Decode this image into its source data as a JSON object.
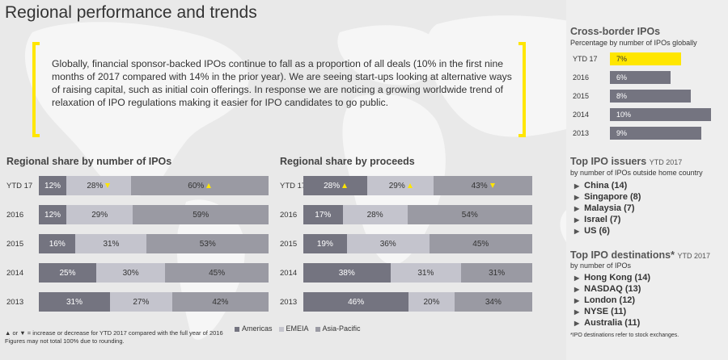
{
  "title": "Regional performance and trends",
  "quote": "Globally, financial sponsor-backed IPOs continue to fall as a proportion of all deals (10% in the first nine months of 2017 compared with 14% in the prior year). We are seeing start-ups looking at alternative ways of raising capital, such as initial coin offerings. In response we are noticing a growing worldwide trend of relaxation of IPO regulations making it easier for IPO candidates to go public.",
  "colors": {
    "americas": "#747480",
    "emeia": "#c4c4cd",
    "asia_pacific": "#9a9aa3",
    "highlight": "#ffe600"
  },
  "legend": [
    "Americas",
    "EMEIA",
    "Asia-Pacific"
  ],
  "footnotes": [
    "▲ or ▼ = increase or decrease for YTD 2017 compared with the full year of 2016",
    "Figures may not total 100% due to rounding."
  ],
  "chart_data": [
    {
      "type": "bar",
      "stacked": true,
      "orientation": "horizontal",
      "title": "Regional share by number of IPOs",
      "categories": [
        "YTD 17",
        "2016",
        "2015",
        "2014",
        "2013"
      ],
      "series": [
        {
          "name": "Americas",
          "values": [
            12,
            12,
            16,
            25,
            31
          ],
          "labels": [
            "12%",
            "12%",
            "16%",
            "25%",
            "31%"
          ],
          "arrows": [
            "",
            "",
            "",
            "",
            ""
          ]
        },
        {
          "name": "EMEIA",
          "values": [
            28,
            29,
            31,
            30,
            27
          ],
          "labels": [
            "28%",
            "29%",
            "31%",
            "30%",
            "27%"
          ],
          "arrows": [
            "down",
            "",
            "",
            "",
            ""
          ]
        },
        {
          "name": "Asia-Pacific",
          "values": [
            60,
            59,
            53,
            45,
            42
          ],
          "labels": [
            "60%",
            "59%",
            "53%",
            "45%",
            "42%"
          ],
          "arrows": [
            "up",
            "",
            "",
            "",
            ""
          ]
        }
      ]
    },
    {
      "type": "bar",
      "stacked": true,
      "orientation": "horizontal",
      "title": "Regional share by proceeds",
      "categories": [
        "YTD 17",
        "2016",
        "2015",
        "2014",
        "2013"
      ],
      "series": [
        {
          "name": "Americas",
          "values": [
            28,
            17,
            19,
            38,
            46
          ],
          "labels": [
            "28%",
            "17%",
            "19%",
            "38%",
            "46%"
          ],
          "arrows": [
            "up",
            "",
            "",
            "",
            ""
          ]
        },
        {
          "name": "EMEIA",
          "values": [
            29,
            28,
            36,
            31,
            20
          ],
          "labels": [
            "29%",
            "28%",
            "36%",
            "31%",
            "20%"
          ],
          "arrows": [
            "up",
            "",
            "",
            "",
            ""
          ]
        },
        {
          "name": "Asia-Pacific",
          "values": [
            43,
            54,
            45,
            31,
            34
          ],
          "labels": [
            "43%",
            "54%",
            "45%",
            "31%",
            "34%"
          ],
          "arrows": [
            "down",
            "",
            "",
            "",
            ""
          ]
        }
      ]
    },
    {
      "type": "bar",
      "orientation": "horizontal",
      "title": "Cross-border IPOs",
      "subtitle": "Percentage by number of IPOs globally",
      "categories": [
        "YTD 17",
        "2016",
        "2015",
        "2014",
        "2013"
      ],
      "values": [
        7,
        6,
        8,
        10,
        9
      ],
      "labels": [
        "7%",
        "6%",
        "8%",
        "10%",
        "9%"
      ],
      "highlight": "YTD 17"
    }
  ],
  "top_issuers": {
    "title": "Top IPO issuers",
    "period": "YTD 2017",
    "subtitle": "by number of IPOs outside home country",
    "items": [
      "China (14)",
      "Singapore (8)",
      "Malaysia (7)",
      "Israel (7)",
      "US (6)"
    ]
  },
  "top_destinations": {
    "title": "Top IPO destinations*",
    "period": "YTD 2017",
    "subtitle": "by number of IPOs",
    "items": [
      "Hong Kong (14)",
      "NASDAQ (13)",
      "London (12)",
      "NYSE (11)",
      "Australia (11)"
    ],
    "footnote": "*IPO destinations refer to stock exchanges."
  }
}
